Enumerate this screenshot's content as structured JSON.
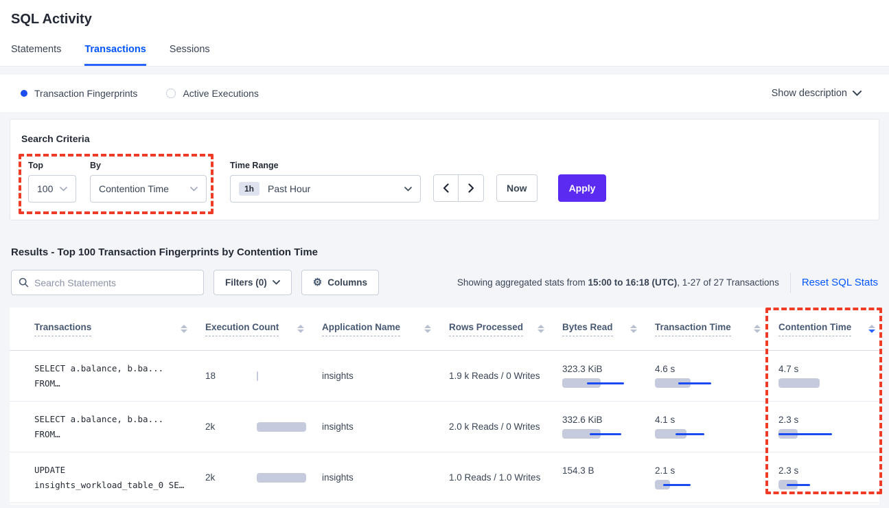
{
  "page": {
    "title": "SQL Activity"
  },
  "tabs": [
    {
      "label": "Statements",
      "active": false
    },
    {
      "label": "Transactions",
      "active": true
    },
    {
      "label": "Sessions",
      "active": false
    }
  ],
  "view_toggle": {
    "options": [
      {
        "label": "Transaction Fingerprints",
        "selected": true
      },
      {
        "label": "Active Executions",
        "selected": false
      }
    ],
    "show_description_label": "Show description"
  },
  "search_criteria": {
    "title": "Search Criteria",
    "top": {
      "label": "Top",
      "value": "100"
    },
    "by": {
      "label": "By",
      "value": "Contention Time"
    },
    "time_range": {
      "label": "Time Range",
      "badge": "1h",
      "value": "Past Hour"
    },
    "now_label": "Now",
    "apply_label": "Apply"
  },
  "results": {
    "heading": "Results - Top 100 Transaction Fingerprints by Contention Time",
    "search_placeholder": "Search Statements",
    "filters_label": "Filters (0)",
    "columns_label": "Columns",
    "stats_prefix": "Showing aggregated stats from ",
    "stats_bold": "15:00 to 16:18 (UTC)",
    "stats_suffix": ", 1-27 of 27 Transactions",
    "reset_label": "Reset SQL Stats"
  },
  "icons": {
    "gear": "⚙"
  },
  "table": {
    "columns": [
      "Transactions",
      "Execution Count",
      "Application Name",
      "Rows Processed",
      "Bytes Read",
      "Transaction Time",
      "Contention Time"
    ],
    "sort": {
      "column": "Contention Time",
      "direction": "desc"
    },
    "rows": [
      {
        "transaction_line1": "SELECT a.balance, b.ba...",
        "transaction_line2": "FROM…",
        "execution_count": "18",
        "application_name": "insights",
        "rows_processed": "1.9 k Reads / 0 Writes",
        "bytes_read": "323.3 KiB",
        "transaction_time": "4.6 s",
        "contention_time": "4.7 s",
        "bars": {
          "execution_count": {
            "bar": 2,
            "line": null
          },
          "bytes_read": {
            "bar": 56,
            "line": [
              36,
              90
            ]
          },
          "transaction_time": {
            "bar": 52,
            "line": [
              34,
              82
            ]
          },
          "contention_time": {
            "bar": 60,
            "line": null
          }
        }
      },
      {
        "transaction_line1": "SELECT a.balance, b.ba...",
        "transaction_line2": "FROM…",
        "execution_count": "2k",
        "application_name": "insights",
        "rows_processed": "2.0 k Reads / 0 Writes",
        "bytes_read": "332.6 KiB",
        "transaction_time": "4.1 s",
        "contention_time": "2.3 s",
        "bars": {
          "execution_count": {
            "bar": 72,
            "line": null
          },
          "bytes_read": {
            "bar": 56,
            "line": [
              40,
              86
            ]
          },
          "transaction_time": {
            "bar": 46,
            "line": [
              30,
              72
            ]
          },
          "contention_time": {
            "bar": 28,
            "line": [
              0,
              78
            ]
          }
        }
      },
      {
        "transaction_line1": "UPDATE",
        "transaction_line2": "insights_workload_table_0 SE…",
        "execution_count": "2k",
        "application_name": "insights",
        "rows_processed": "1.0 Reads / 1.0 Writes",
        "bytes_read": "154.3 B",
        "transaction_time": "2.1 s",
        "contention_time": "2.3 s",
        "bars": {
          "execution_count": {
            "bar": 72,
            "line": null
          },
          "bytes_read": null,
          "transaction_time": {
            "bar": 22,
            "line": [
              12,
              52
            ]
          },
          "contention_time": {
            "bar": 28,
            "line": [
              12,
              46
            ]
          }
        }
      }
    ]
  },
  "colors": {
    "accent_blue": "#0055ff",
    "apply_purple": "#5c2bf2",
    "annotation_red": "#f03b26",
    "bar_gray": "#c5cbdd",
    "bar_blue": "#1b4af0"
  }
}
